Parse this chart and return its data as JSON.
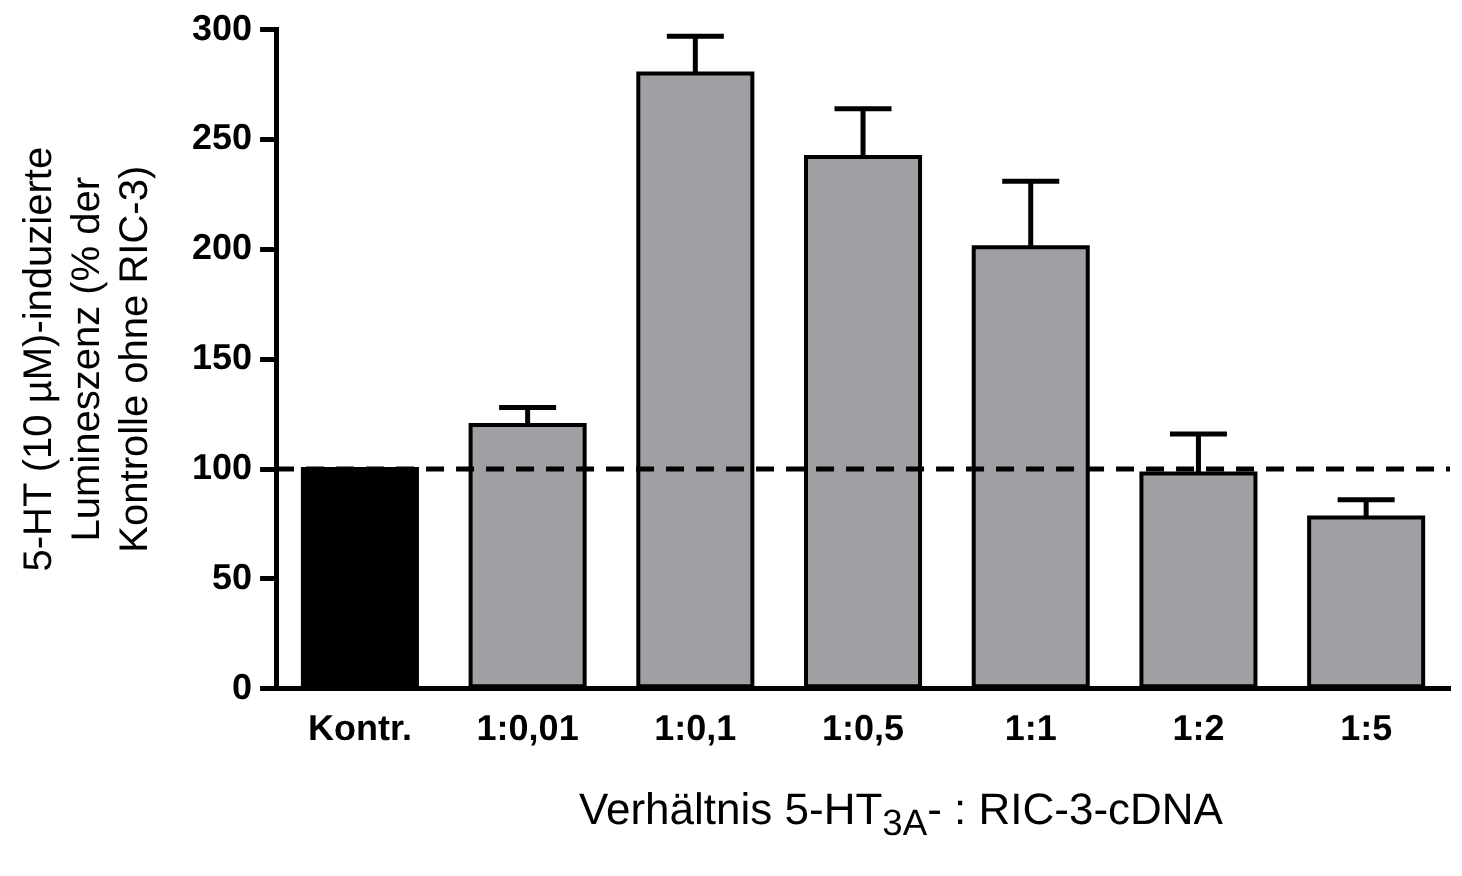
{
  "chart_data": {
    "type": "bar",
    "xlabel": "Verhältnis 5-HT$_{3A}$- : RIC-3-cDNA",
    "ylabel": "5-HT (10 µM)-induzierte Lumineszenz (% der Kontrolle ohne RIC-3)",
    "categories": [
      "Kontr.",
      "1:0,01",
      "1:0,1",
      "1:0,5",
      "1:1",
      "1:2",
      "1:5"
    ],
    "values": [
      100,
      120,
      280,
      242,
      201,
      98,
      78
    ],
    "errors": [
      null,
      [
        120,
        128
      ],
      [
        280,
        297
      ],
      [
        242,
        264
      ],
      [
        201,
        231
      ],
      [
        98,
        116
      ],
      [
        78,
        86
      ]
    ],
    "colors": [
      "#000000",
      "#a0a0a4",
      "#a0a0a4",
      "#a0a0a4",
      "#a0a0a4",
      "#a0a0a4",
      "#a0a0a4"
    ],
    "ylim": [
      0,
      300
    ],
    "yticks": [
      0,
      50,
      100,
      150,
      200,
      250,
      300
    ],
    "ref_lines": [
      {
        "axis": "y",
        "value": 100,
        "line_style": "dashed",
        "color": "#000000"
      }
    ],
    "grid": false,
    "legend": false
  }
}
